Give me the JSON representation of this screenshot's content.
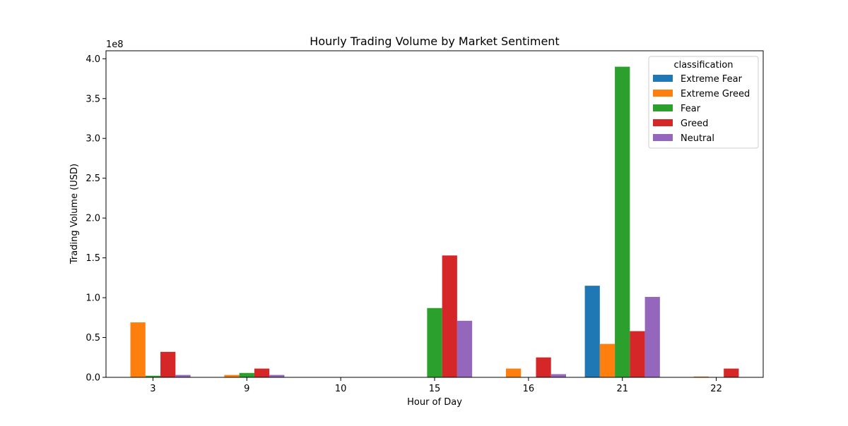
{
  "chart_data": {
    "type": "bar",
    "title": "Hourly Trading Volume by Market Sentiment",
    "xlabel": "Hour of Day",
    "ylabel": "Trading Volume (USD)",
    "y_scale_label": "1e8",
    "ylim": [
      0,
      410000000
    ],
    "yticks": [
      0,
      50000000,
      100000000,
      150000000,
      200000000,
      250000000,
      300000000,
      350000000,
      400000000
    ],
    "ytick_labels": [
      "0.0",
      "0.5",
      "1.0",
      "1.5",
      "2.0",
      "2.5",
      "3.0",
      "3.5",
      "4.0"
    ],
    "categories": [
      "3",
      "9",
      "10",
      "15",
      "16",
      "21",
      "22"
    ],
    "legend_title": "classification",
    "legend_position": "top-right",
    "grid": false,
    "series": [
      {
        "name": "Extreme Fear",
        "color": "#1f77b4",
        "values": [
          0,
          0,
          0,
          0,
          0,
          115000000,
          0
        ]
      },
      {
        "name": "Extreme Greed",
        "color": "#ff7f0e",
        "values": [
          69000000,
          3000000,
          0,
          0,
          11000000,
          42000000,
          1000000
        ]
      },
      {
        "name": "Fear",
        "color": "#2ca02c",
        "values": [
          2000000,
          5500000,
          0,
          87000000,
          0,
          390000000,
          0
        ]
      },
      {
        "name": "Greed",
        "color": "#d62728",
        "values": [
          32000000,
          11000000,
          0,
          153000000,
          25000000,
          58000000,
          11000000
        ]
      },
      {
        "name": "Neutral",
        "color": "#9467bd",
        "values": [
          3000000,
          3000000,
          0,
          71000000,
          4000000,
          101000000,
          0
        ]
      }
    ]
  }
}
